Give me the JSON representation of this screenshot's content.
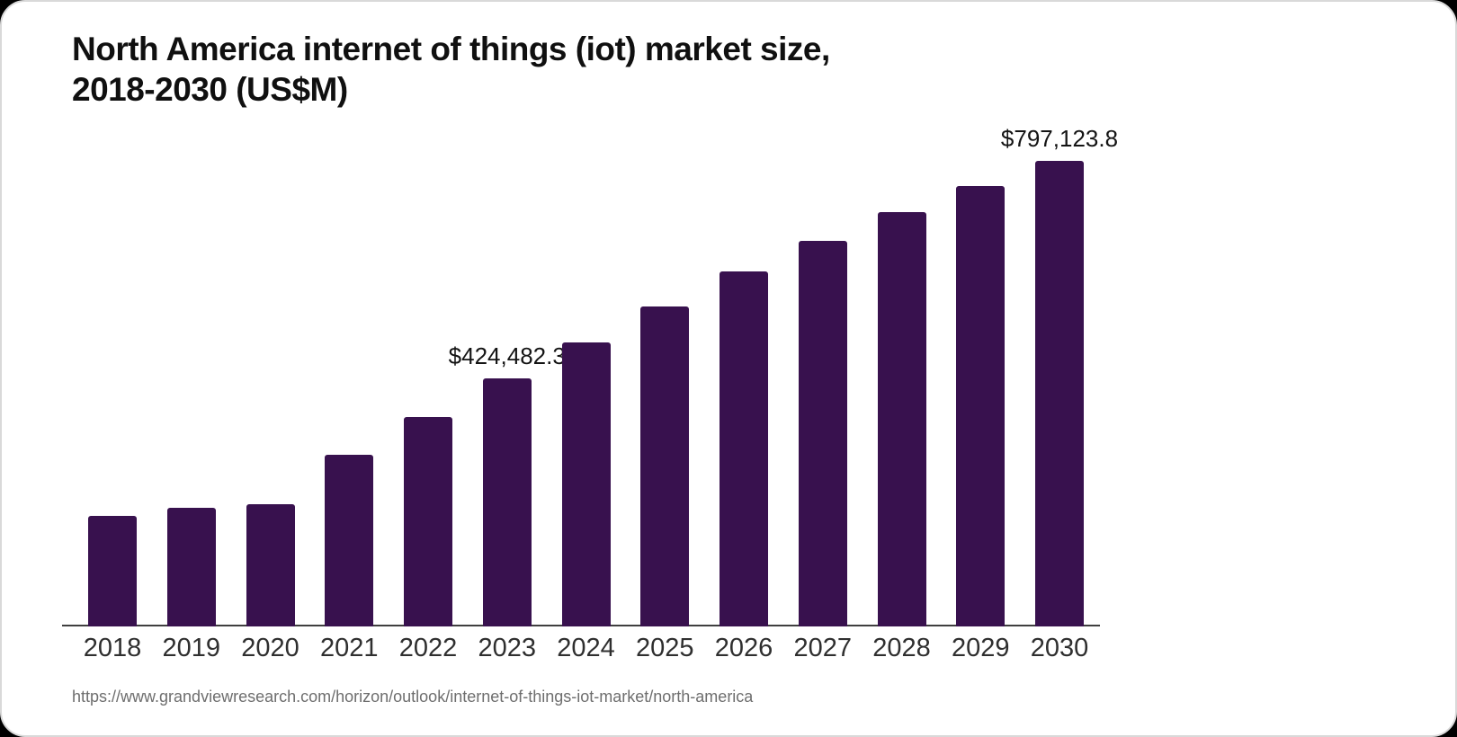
{
  "header": {
    "title_line1": "North America internet of things (iot) market size,",
    "title_line2": "2018-2030 (US$M)"
  },
  "footer": {
    "source_url": "https://www.grandviewresearch.com/horizon/outlook/internet-of-things-iot-market/north-america"
  },
  "chart_data": {
    "type": "bar",
    "title": "North America internet of things (iot) market size, 2018-2030 (US$M)",
    "xlabel": "",
    "ylabel": "",
    "categories": [
      "2018",
      "2019",
      "2020",
      "2021",
      "2022",
      "2023",
      "2024",
      "2025",
      "2026",
      "2027",
      "2028",
      "2029",
      "2030"
    ],
    "values": [
      189300,
      203100,
      209300,
      293400,
      359000,
      424482.3,
      486700,
      548300,
      607100,
      660100,
      708900,
      754000,
      797123.8
    ],
    "value_unit": "US$M",
    "annotations": [
      {
        "category": "2023",
        "text": "$424,482.3"
      },
      {
        "category": "2030",
        "text": "$797,123.8"
      }
    ],
    "ylim": [
      0,
      860000
    ],
    "grid": false,
    "legend": "none",
    "bar_color": "#38114E",
    "axis_line_color": "#3f3f3f",
    "xtick_color": "#2f2f2f",
    "annotation_color": "#141414",
    "title_color": "#101010",
    "source_color": "#6e6e6e",
    "background_color": "#ffffff"
  }
}
